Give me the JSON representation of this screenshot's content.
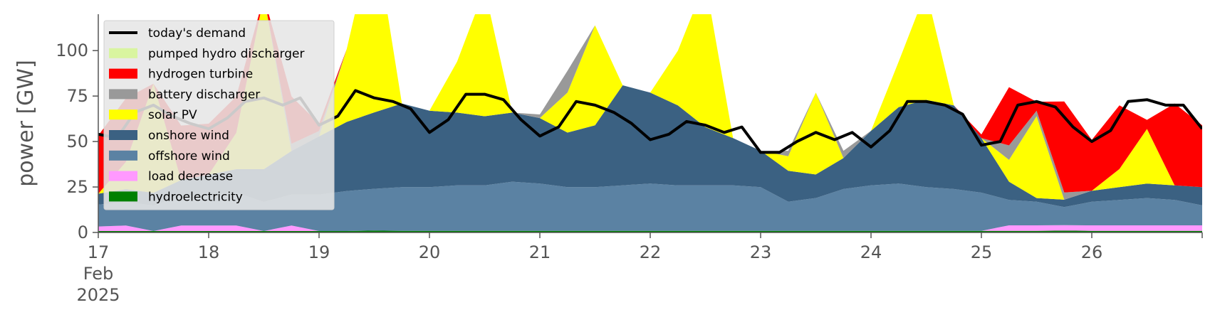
{
  "chart_data": {
    "type": "area",
    "title": "",
    "xlabel": "",
    "ylabel": "power [GW]",
    "ylim": [
      0,
      120
    ],
    "xlim": [
      17,
      27
    ],
    "y_ticks": [
      0,
      25,
      50,
      75,
      100
    ],
    "x_tick_labels": [
      "17",
      "18",
      "19",
      "20",
      "21",
      "22",
      "23",
      "24",
      "25",
      "26"
    ],
    "x_first_tick_extra": [
      "Feb",
      "2025"
    ],
    "grid": false,
    "legend_position": "top-left",
    "x": [
      17.0,
      17.25,
      17.5,
      17.75,
      18.0,
      18.25,
      18.5,
      18.75,
      19.0,
      19.25,
      19.5,
      19.75,
      20.0,
      20.25,
      20.5,
      20.75,
      21.0,
      21.25,
      21.5,
      21.75,
      22.0,
      22.25,
      22.5,
      22.75,
      23.0,
      23.25,
      23.5,
      23.75,
      24.0,
      24.25,
      24.5,
      24.75,
      25.0,
      25.25,
      25.5,
      25.75,
      26.0,
      26.25,
      26.5,
      26.75,
      27.0
    ],
    "series": [
      {
        "name": "hydroelectricity",
        "color": "#008000",
        "values": [
          0.8,
          0.8,
          0.8,
          0.8,
          0.8,
          0.8,
          0.8,
          0.8,
          0.8,
          0.8,
          1,
          0.9,
          0.9,
          0.9,
          0.9,
          0.9,
          0.9,
          0.9,
          0.9,
          0.9,
          0.9,
          0.9,
          0.9,
          0.9,
          0.9,
          0.9,
          0.9,
          0.9,
          0.9,
          0.9,
          0.9,
          0.9,
          0.9,
          0.9,
          0.9,
          1,
          0.9,
          0.9,
          0.9,
          0.9,
          0.9
        ]
      },
      {
        "name": "load decrease",
        "color": "#ff99ff",
        "values": [
          2.5,
          3,
          0,
          3,
          3,
          3,
          0,
          3,
          0,
          0,
          0,
          0,
          0,
          0,
          0,
          0,
          0,
          0,
          0,
          0,
          0,
          0,
          0,
          0,
          0,
          0,
          0,
          0,
          0,
          0,
          0,
          0,
          0,
          3,
          3,
          3,
          3,
          3,
          3,
          3,
          3
        ]
      },
      {
        "name": "offshore wind",
        "color": "#5b82a3",
        "values": [
          12,
          13,
          14,
          16,
          17,
          18,
          16,
          17,
          20,
          22,
          23,
          24,
          24,
          25,
          25,
          27,
          26,
          24,
          24,
          25,
          26,
          25,
          25,
          25,
          24,
          16,
          18,
          23,
          25,
          26,
          24,
          23,
          21,
          14,
          13,
          10,
          13,
          14,
          15,
          14,
          11
        ]
      },
      {
        "name": "onshore wind",
        "color": "#3b6182",
        "values": [
          6,
          7,
          7,
          9,
          11,
          13,
          18,
          24,
          32,
          38,
          42,
          46,
          42,
          40,
          38,
          38,
          36,
          30,
          34,
          55,
          50,
          44,
          32,
          26,
          20,
          17,
          13,
          17,
          30,
          42,
          48,
          46,
          30,
          10,
          2,
          4,
          6,
          7,
          8,
          8,
          10
        ]
      },
      {
        "name": "solar PV",
        "color": "#ffff00",
        "values": [
          0,
          15,
          60,
          0,
          0,
          20,
          95,
          0,
          0,
          40,
          100,
          0,
          0,
          28,
          70,
          0,
          0,
          22,
          55,
          0,
          0,
          30,
          80,
          0,
          0,
          8,
          45,
          0,
          0,
          25,
          60,
          0,
          0,
          12,
          45,
          0,
          0,
          10,
          30,
          0,
          0
        ]
      },
      {
        "name": "battery discharger",
        "color": "#999999",
        "values": [
          0,
          0,
          0,
          0,
          0,
          0,
          0,
          4,
          3,
          0,
          0,
          0,
          0,
          0,
          0,
          0,
          2,
          12,
          0,
          0,
          0,
          0,
          0,
          0,
          0,
          3,
          0,
          4,
          0,
          0,
          0,
          0,
          0,
          8,
          3,
          4,
          0,
          0,
          0,
          0,
          0
        ]
      },
      {
        "name": "hydrogen turbine",
        "color": "#ff0000",
        "values": [
          32,
          35,
          0,
          30,
          28,
          20,
          0,
          26,
          4,
          0,
          0,
          0,
          0,
          0,
          0,
          0,
          0,
          0,
          0,
          0,
          0,
          0,
          0,
          0,
          0,
          0,
          0,
          0,
          0,
          0,
          0,
          0,
          2,
          32,
          5,
          50,
          28,
          35,
          5,
          45,
          34
        ]
      },
      {
        "name": "pumped hydro discharger",
        "color": "#d9f5a0",
        "values": [
          0,
          0,
          0,
          0,
          0,
          0,
          0,
          0,
          0,
          0,
          0,
          0,
          0,
          0,
          0,
          0,
          0,
          0,
          0,
          0,
          0,
          0,
          0,
          0,
          0,
          0,
          0,
          0,
          0,
          0,
          0,
          0,
          0,
          0,
          0,
          0,
          0,
          0,
          0,
          0,
          0
        ]
      }
    ],
    "line": {
      "name": "today's demand",
      "color": "#000000",
      "x": [
        17.0,
        17.17,
        17.33,
        17.5,
        17.67,
        17.83,
        18.0,
        18.17,
        18.33,
        18.5,
        18.67,
        18.83,
        19.0,
        19.17,
        19.33,
        19.5,
        19.67,
        19.83,
        20.0,
        20.17,
        20.33,
        20.5,
        20.67,
        20.83,
        21.0,
        21.17,
        21.33,
        21.5,
        21.67,
        21.83,
        22.0,
        22.17,
        22.33,
        22.5,
        22.67,
        22.83,
        23.0,
        23.17,
        23.33,
        23.5,
        23.67,
        23.83,
        24.0,
        24.17,
        24.33,
        24.5,
        24.67,
        24.83,
        25.0,
        25.17,
        25.33,
        25.5,
        25.67,
        25.83,
        26.0,
        26.17,
        26.33,
        26.5,
        26.67,
        26.83,
        27.0
      ],
      "values": [
        54,
        52,
        66,
        70,
        64,
        60,
        57,
        63,
        72,
        74,
        70,
        74,
        59,
        64,
        78,
        74,
        72,
        68,
        55,
        62,
        76,
        76,
        73,
        62,
        53,
        58,
        72,
        70,
        66,
        60,
        51,
        54,
        61,
        59,
        55,
        58,
        44,
        44,
        50,
        55,
        51,
        55,
        47,
        56,
        72,
        72,
        70,
        65,
        48,
        50,
        70,
        72,
        69,
        58,
        50,
        56,
        72,
        73,
        70,
        70,
        57
      ]
    }
  }
}
